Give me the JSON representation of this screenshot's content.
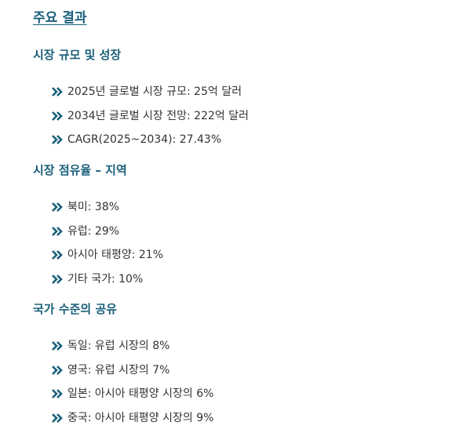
{
  "page": {
    "title": "주요 결과"
  },
  "sections": [
    {
      "heading": "시장 규모 및 성장",
      "items": [
        {
          "icon": "double-chevron-right-icon",
          "text": "2025년 글로벌 시장 규모: 25억 달러"
        },
        {
          "icon": "double-chevron-right-icon",
          "text": "2034년 글로벌 시장 전망: 222억 달러"
        },
        {
          "icon": "double-chevron-right-icon",
          "text": "CAGR(2025~2034): 27.43%"
        }
      ]
    },
    {
      "heading": "시장 점유율 – 지역",
      "items": [
        {
          "icon": "double-chevron-right-icon",
          "text": "북미: 38%"
        },
        {
          "icon": "double-chevron-right-icon",
          "text": "유럽: 29%"
        },
        {
          "icon": "double-chevron-right-icon",
          "text": "아시아 태평양: 21%"
        },
        {
          "icon": "double-chevron-right-icon",
          "text": "기타 국가: 10%"
        }
      ]
    },
    {
      "heading": "국가 수준의 공유",
      "items": [
        {
          "icon": "double-chevron-right-icon",
          "text": "독일: 유럽 시장의 8%"
        },
        {
          "icon": "double-chevron-right-icon",
          "text": "영국: 유럽 시장의 7%"
        },
        {
          "icon": "double-chevron-right-icon",
          "text": "일본: 아시아 태평양 시장의 6%"
        },
        {
          "icon": "double-chevron-right-icon",
          "text": "중국: 아시아 태평양 시장의 9%"
        }
      ]
    }
  ],
  "colors": {
    "heading": "#1a5f7a",
    "bullet": "#1a5f7a",
    "text": "#333333"
  }
}
